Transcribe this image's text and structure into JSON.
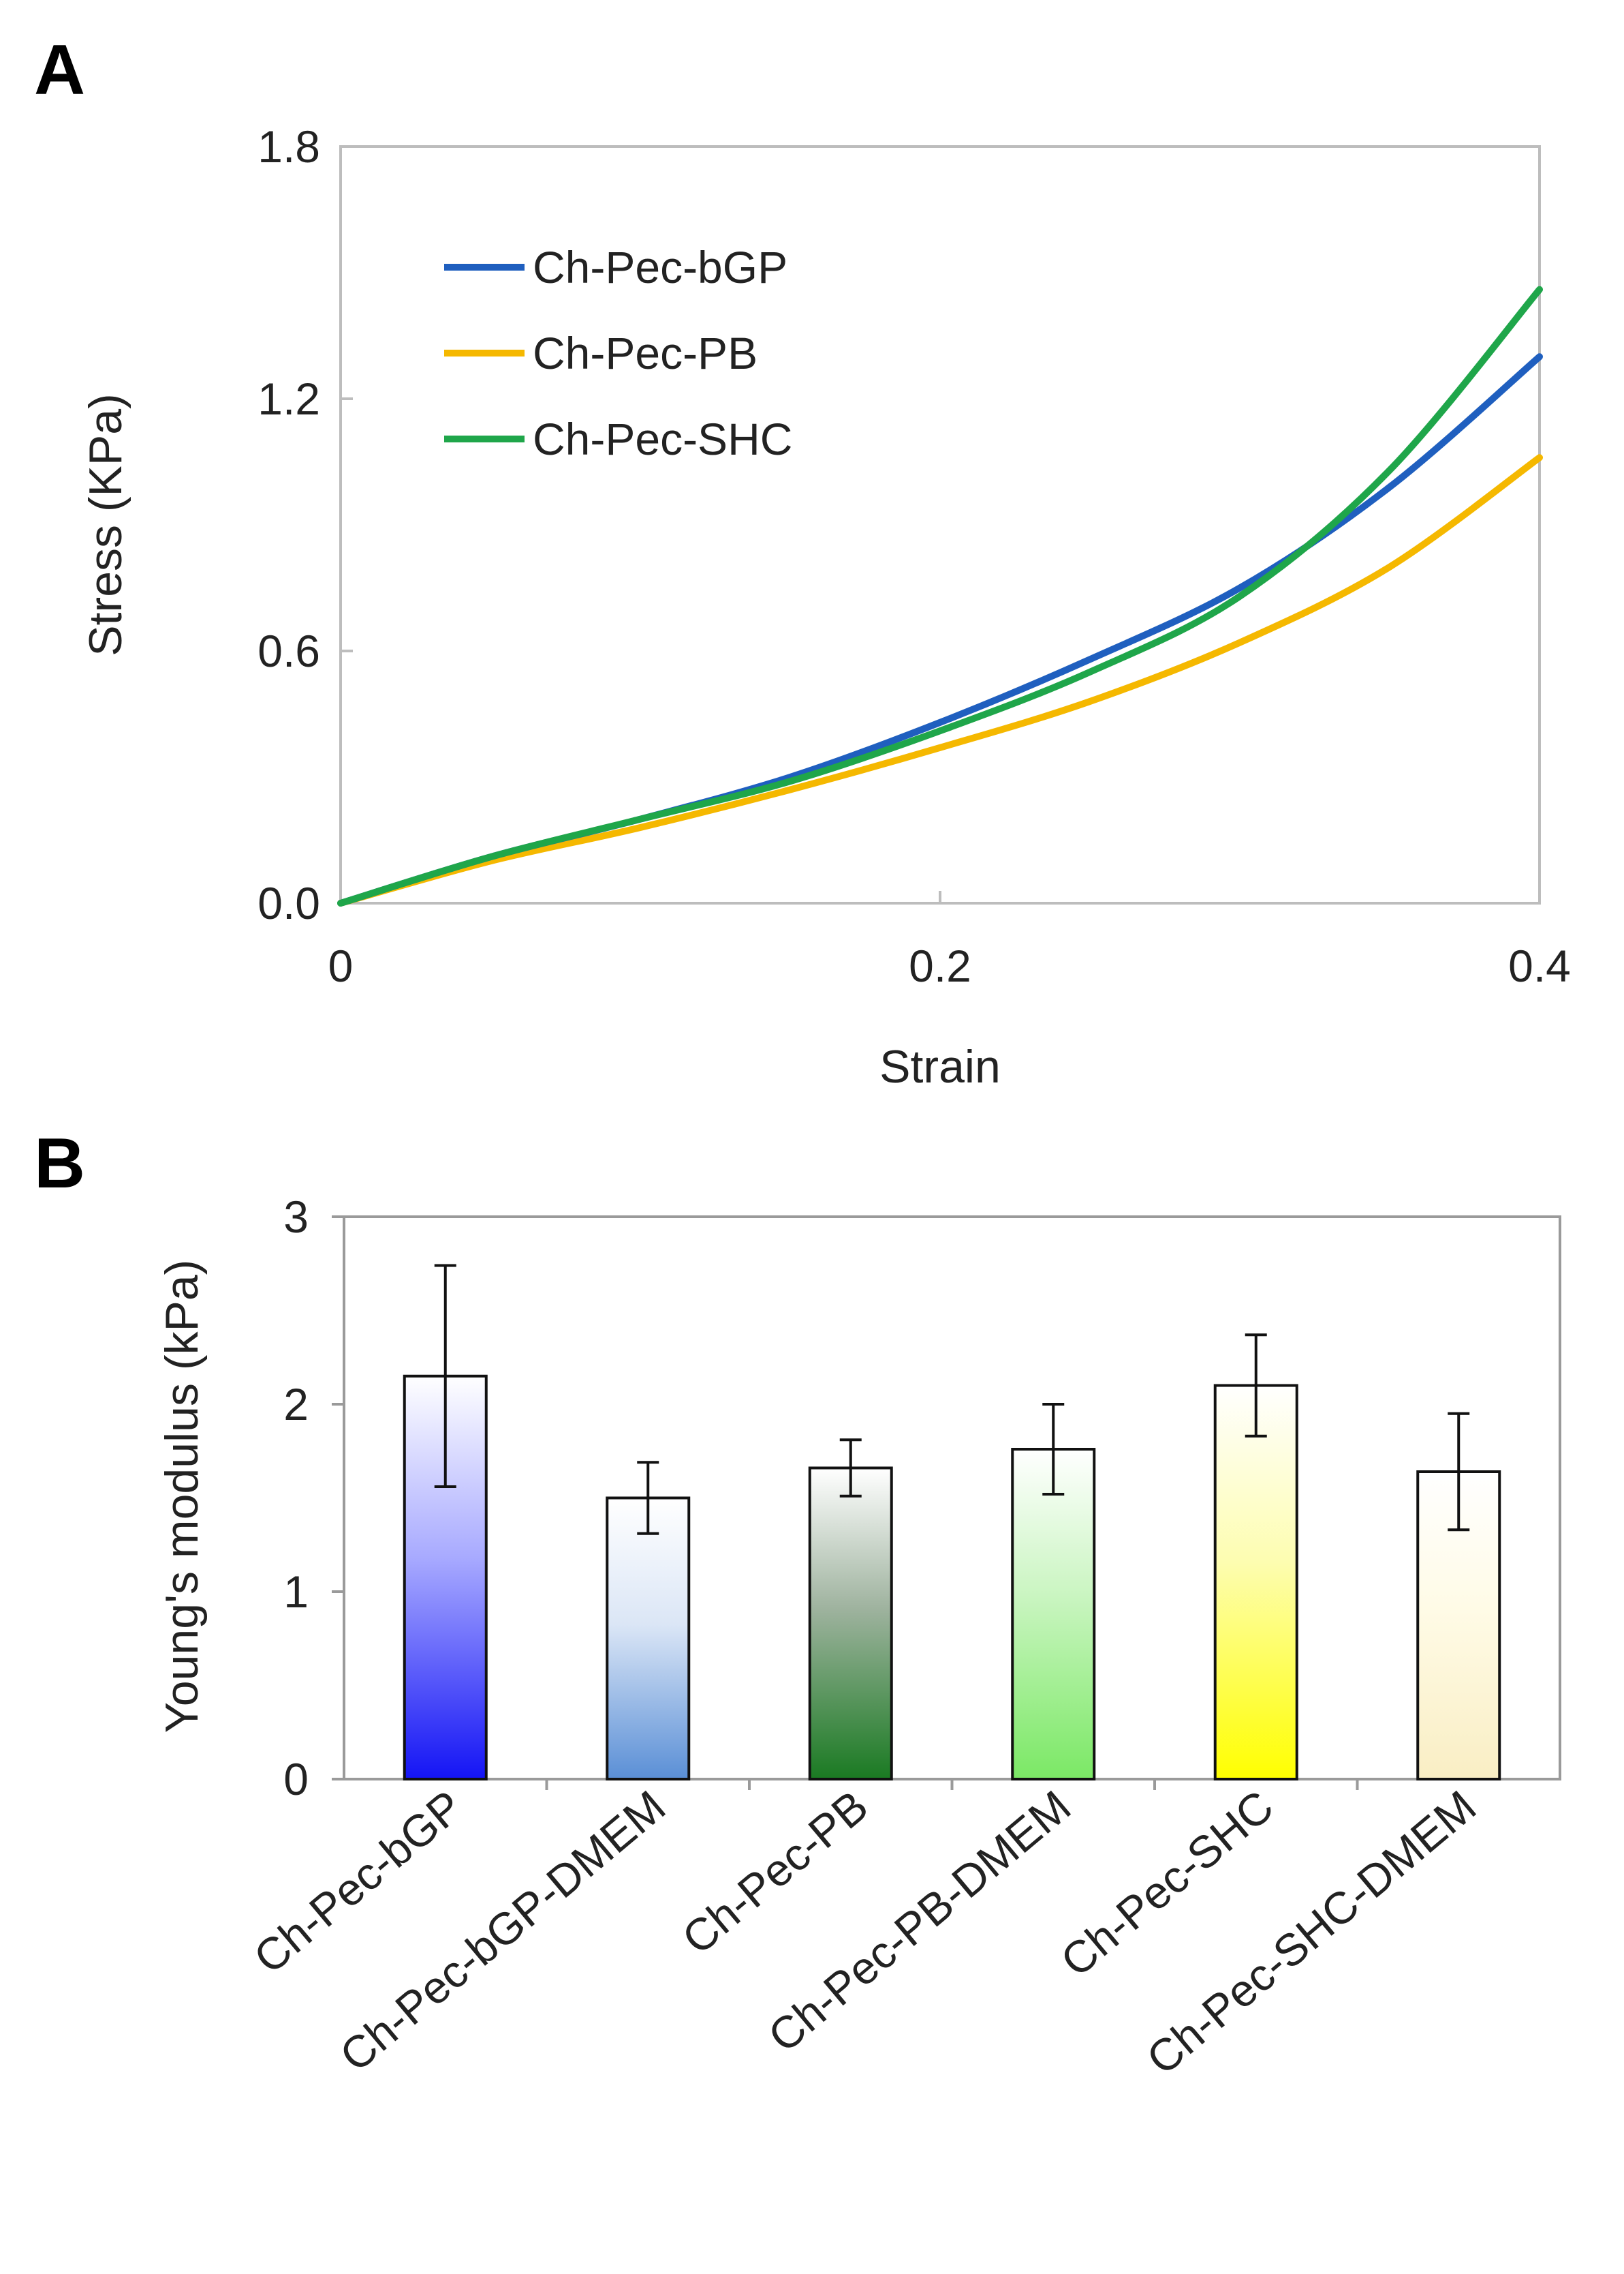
{
  "chart_data": [
    {
      "panel": "A",
      "type": "line",
      "title": "",
      "xlabel": "Strain",
      "ylabel": "Stress (KPa)",
      "xlim": [
        0,
        0.4
      ],
      "ylim": [
        0,
        1.8
      ],
      "xticks": [
        0,
        0.2,
        0.4
      ],
      "xtick_labels": [
        "0",
        "0.2",
        "0.4"
      ],
      "yticks": [
        0,
        0.6,
        1.2,
        1.8
      ],
      "ytick_labels": [
        "0.0",
        "0.6",
        "1.2",
        "1.8"
      ],
      "grid": false,
      "legend_position": "top-left",
      "series": [
        {
          "name": "Ch-Pec-bGP",
          "color": "#1f5fbf",
          "x": [
            0,
            0.05,
            0.1,
            0.15,
            0.2,
            0.25,
            0.3,
            0.35,
            0.4
          ],
          "y": [
            0,
            0.11,
            0.2,
            0.3,
            0.43,
            0.58,
            0.75,
            0.99,
            1.3
          ]
        },
        {
          "name": "Ch-Pec-PB",
          "color": "#f5b800",
          "x": [
            0,
            0.05,
            0.1,
            0.15,
            0.2,
            0.25,
            0.3,
            0.35,
            0.4
          ],
          "y": [
            0,
            0.1,
            0.18,
            0.27,
            0.37,
            0.48,
            0.62,
            0.8,
            1.06
          ]
        },
        {
          "name": "Ch-Pec-SHC",
          "color": "#1fa64a",
          "x": [
            0,
            0.05,
            0.1,
            0.15,
            0.2,
            0.25,
            0.3,
            0.35,
            0.4
          ],
          "y": [
            0,
            0.11,
            0.2,
            0.29,
            0.41,
            0.55,
            0.73,
            1.03,
            1.46
          ]
        }
      ]
    },
    {
      "panel": "B",
      "type": "bar",
      "title": "",
      "xlabel": "",
      "ylabel": "Young's modulus (kPa)",
      "ylim": [
        0,
        3
      ],
      "yticks": [
        0,
        1,
        2,
        3
      ],
      "ytick_labels": [
        "0",
        "1",
        "2",
        "3"
      ],
      "grid": false,
      "categories": [
        "Ch-Pec-bGP",
        "Ch-Pec-bGP-DMEM",
        "Ch-Pec-PB",
        "Ch-Pec-PB-DMEM",
        "Ch-Pec-SHC",
        "Ch-Pec-SHC-DMEM"
      ],
      "values": [
        2.15,
        1.5,
        1.66,
        1.76,
        2.1,
        1.64
      ],
      "errors": [
        0.59,
        0.19,
        0.15,
        0.24,
        0.27,
        0.31
      ],
      "bar_gradients": [
        [
          "#ffffff",
          "#a8aaff",
          "#1414f5"
        ],
        [
          "#ffffff",
          "#dbe6f6",
          "#5a8fd6"
        ],
        [
          "#ffffff",
          "#9fb39f",
          "#1a7a22"
        ],
        [
          "#ffffff",
          "#c9f5c0",
          "#7be865"
        ],
        [
          "#ffffff",
          "#fdfdb0",
          "#ffff00"
        ],
        [
          "#ffffff",
          "#fffbe6",
          "#f9eec4"
        ]
      ]
    }
  ]
}
